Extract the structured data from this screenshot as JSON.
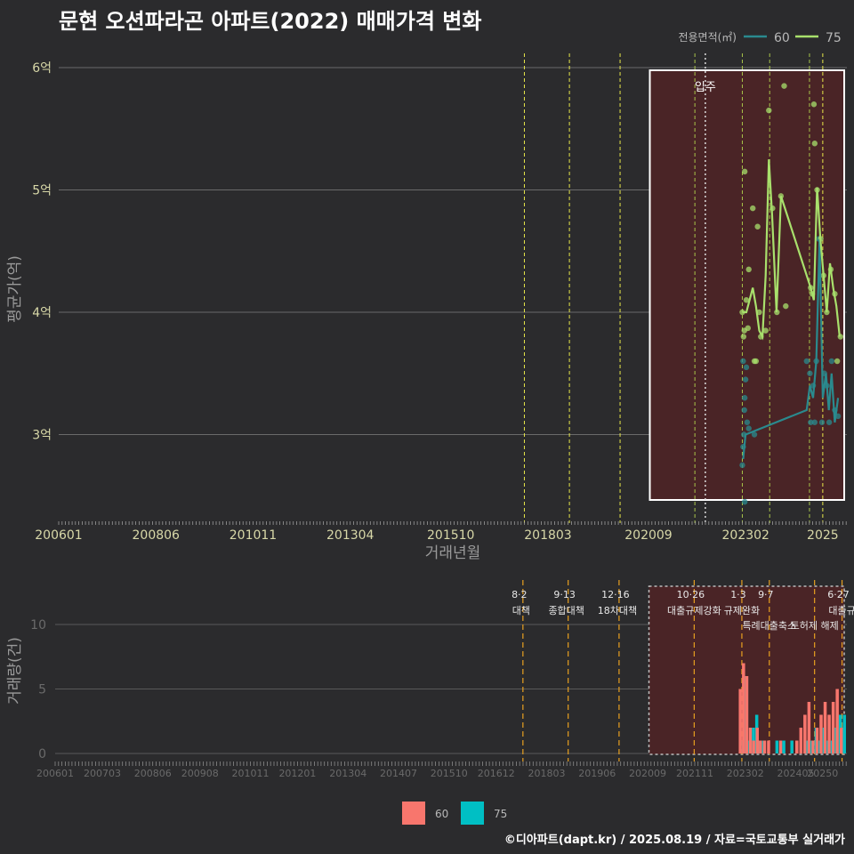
{
  "title": "문현 오션파라곤 아파트(2022) 매매가격 변화",
  "footer": "©디아파트(dapt.kr) / 2025.08.19 / 자료=국토교통부 실거래가",
  "chart_data": [
    {
      "type": "line",
      "name": "price",
      "xlabel": "거래년월",
      "ylabel": "평균가(억)",
      "x_ticks": [
        "200601",
        "200806",
        "201011",
        "201304",
        "201510",
        "201803",
        "202009",
        "202302",
        "2025"
      ],
      "y_ticks": [
        {
          "value": 3,
          "label": "3억"
        },
        {
          "value": 4,
          "label": "4억"
        },
        {
          "value": 5,
          "label": "5억"
        },
        {
          "value": 6,
          "label": "6억"
        }
      ],
      "ylim": [
        2.3,
        6.1
      ],
      "legend_title": "전용면적(㎡)",
      "legend_position": "top-right",
      "annotation": "입주",
      "series": [
        {
          "name": "60",
          "color": "#2a8a8e",
          "points": [
            [
              2023.02,
              2.8
            ],
            [
              2023.05,
              2.9
            ],
            [
              2023.08,
              3.0
            ],
            [
              2024.6,
              3.2
            ],
            [
              2024.68,
              3.4
            ],
            [
              2024.76,
              3.3
            ],
            [
              2024.84,
              3.6
            ],
            [
              2024.92,
              4.6
            ],
            [
              2025.0,
              3.3
            ],
            [
              2025.08,
              3.5
            ],
            [
              2025.15,
              3.2
            ],
            [
              2025.22,
              3.5
            ],
            [
              2025.3,
              3.1
            ],
            [
              2025.38,
              3.3
            ]
          ]
        },
        {
          "name": "75",
          "color": "#a8e06c",
          "points": [
            [
              2023.0,
              4.0
            ],
            [
              2023.1,
              4.0
            ],
            [
              2023.18,
              4.1
            ],
            [
              2023.26,
              4.2
            ],
            [
              2023.34,
              4.05
            ],
            [
              2023.42,
              3.85
            ],
            [
              2023.5,
              3.8
            ],
            [
              2023.58,
              4.3
            ],
            [
              2023.66,
              5.25
            ],
            [
              2023.74,
              4.8
            ],
            [
              2023.85,
              4.0
            ],
            [
              2023.96,
              4.95
            ],
            [
              2024.7,
              4.2
            ],
            [
              2024.78,
              4.1
            ],
            [
              2024.86,
              5.02
            ],
            [
              2024.94,
              4.6
            ],
            [
              2025.02,
              4.3
            ],
            [
              2025.1,
              4.0
            ],
            [
              2025.18,
              4.4
            ],
            [
              2025.26,
              4.2
            ],
            [
              2025.34,
              4.05
            ],
            [
              2025.42,
              3.8
            ]
          ]
        }
      ],
      "scatter": [
        {
          "series": "60",
          "points": [
            [
              2023.0,
              2.75
            ],
            [
              2023.02,
              2.9
            ],
            [
              2023.04,
              3.0
            ],
            [
              2023.05,
              3.2
            ],
            [
              2023.06,
              3.3
            ],
            [
              2023.08,
              3.45
            ],
            [
              2023.1,
              3.55
            ],
            [
              2023.06,
              2.45
            ],
            [
              2023.12,
              3.1
            ],
            [
              2023.02,
              3.6
            ],
            [
              2023.16,
              3.05
            ],
            [
              2023.3,
              3.0
            ],
            [
              2024.6,
              3.6
            ],
            [
              2024.68,
              3.5
            ],
            [
              2024.7,
              3.1
            ],
            [
              2024.76,
              3.4
            ],
            [
              2024.8,
              3.1
            ],
            [
              2024.84,
              3.6
            ],
            [
              2024.9,
              4.6
            ],
            [
              2024.98,
              3.1
            ],
            [
              2025.04,
              3.5
            ],
            [
              2025.1,
              3.4
            ],
            [
              2025.16,
              3.1
            ],
            [
              2025.22,
              3.6
            ],
            [
              2025.3,
              3.2
            ],
            [
              2025.38,
              3.15
            ]
          ]
        },
        {
          "series": "75",
          "points": [
            [
              2023.0,
              4.0
            ],
            [
              2023.03,
              3.8
            ],
            [
              2023.05,
              3.85
            ],
            [
              2023.06,
              5.15
            ],
            [
              2023.1,
              4.1
            ],
            [
              2023.14,
              3.87
            ],
            [
              2023.16,
              4.35
            ],
            [
              2023.26,
              4.85
            ],
            [
              2023.3,
              3.6
            ],
            [
              2023.34,
              3.6
            ],
            [
              2023.38,
              4.7
            ],
            [
              2023.42,
              4.0
            ],
            [
              2023.46,
              3.8
            ],
            [
              2023.58,
              3.85
            ],
            [
              2023.66,
              5.65
            ],
            [
              2023.75,
              4.85
            ],
            [
              2023.86,
              4.0
            ],
            [
              2023.96,
              4.95
            ],
            [
              2024.04,
              5.85
            ],
            [
              2024.08,
              4.05
            ],
            [
              2024.7,
              4.2
            ],
            [
              2024.74,
              4.15
            ],
            [
              2024.78,
              5.7
            ],
            [
              2024.8,
              5.38
            ],
            [
              2024.86,
              5.0
            ],
            [
              2024.95,
              4.6
            ],
            [
              2025.02,
              4.3
            ],
            [
              2025.1,
              4.0
            ],
            [
              2025.2,
              4.35
            ],
            [
              2025.3,
              4.15
            ],
            [
              2025.36,
              3.6
            ],
            [
              2025.44,
              3.8
            ]
          ]
        }
      ],
      "policy_dates": [
        2017.58,
        2018.7,
        2019.96,
        2021.82,
        2023.0,
        2023.68,
        2024.67,
        2025.0
      ],
      "policy_colors": [
        "#e8e84a",
        "#e8e84a",
        "#e8e84a",
        "#a8c44a",
        "#a8c44a",
        "#a8c44a",
        "#a8c44a",
        "#e8e84a"
      ],
      "move_in": 2022.08,
      "highlight_range": [
        2020.7,
        2025.6
      ]
    },
    {
      "type": "bar",
      "name": "volume",
      "xlabel": "",
      "ylabel": "거래량(건)",
      "x_ticks": [
        "200601",
        "200703",
        "200806",
        "200908",
        "201011",
        "201201",
        "201304",
        "201407",
        "201510",
        "201612",
        "201803",
        "201906",
        "202009",
        "202111",
        "202302",
        "202405",
        "20250"
      ],
      "y_ticks": [
        0,
        5,
        10
      ],
      "ylim": [
        0,
        12
      ],
      "series": [
        {
          "name": "60",
          "color": "#f8766d"
        },
        {
          "name": "75",
          "color": "#00bfc4"
        }
      ],
      "bars": [
        {
          "x": 2023.0,
          "s60": 5,
          "s75": 1
        },
        {
          "x": 2023.08,
          "s60": 7,
          "s75": 6
        },
        {
          "x": 2023.16,
          "s60": 6,
          "s75": 1
        },
        {
          "x": 2023.25,
          "s60": 2,
          "s75": 2
        },
        {
          "x": 2023.33,
          "s60": 1,
          "s75": 3
        },
        {
          "x": 2023.42,
          "s60": 2,
          "s75": 1
        },
        {
          "x": 2023.5,
          "s60": 1,
          "s75": 1
        },
        {
          "x": 2023.6,
          "s60": 1,
          "s75": 0
        },
        {
          "x": 2023.7,
          "s60": 1,
          "s75": 0
        },
        {
          "x": 2023.83,
          "s60": 0,
          "s75": 1
        },
        {
          "x": 2024.0,
          "s60": 1,
          "s75": 1
        },
        {
          "x": 2024.2,
          "s60": 0,
          "s75": 1
        },
        {
          "x": 2024.4,
          "s60": 1,
          "s75": 0
        },
        {
          "x": 2024.5,
          "s60": 2,
          "s75": 0
        },
        {
          "x": 2024.6,
          "s60": 3,
          "s75": 1
        },
        {
          "x": 2024.7,
          "s60": 4,
          "s75": 1
        },
        {
          "x": 2024.8,
          "s60": 1,
          "s75": 2
        },
        {
          "x": 2024.9,
          "s60": 2,
          "s75": 1
        },
        {
          "x": 2025.0,
          "s60": 3,
          "s75": 2
        },
        {
          "x": 2025.1,
          "s60": 4,
          "s75": 1
        },
        {
          "x": 2025.2,
          "s60": 3,
          "s75": 1
        },
        {
          "x": 2025.3,
          "s60": 4,
          "s75": 2
        },
        {
          "x": 2025.4,
          "s60": 5,
          "s75": 3
        },
        {
          "x": 2025.5,
          "s60": 2,
          "s75": 3
        }
      ],
      "policy_lines": [
        {
          "x": 2017.58,
          "date": "8·2",
          "label": "대책"
        },
        {
          "x": 2018.7,
          "date": "9·13",
          "label": "종합대책"
        },
        {
          "x": 2019.96,
          "date": "12·16",
          "label": "18차대책"
        },
        {
          "x": 2021.82,
          "date": "10·26",
          "label": "대출규제강화"
        },
        {
          "x": 2023.0,
          "date": "1·3",
          "label": "규제완화"
        },
        {
          "x": 2023.68,
          "date": "9·7",
          "label": "특례대출축소"
        },
        {
          "x": 2024.8,
          "date": "",
          "label": "토허제 해제"
        },
        {
          "x": 2025.48,
          "date": "6·27",
          "label": "대출규"
        }
      ]
    }
  ]
}
